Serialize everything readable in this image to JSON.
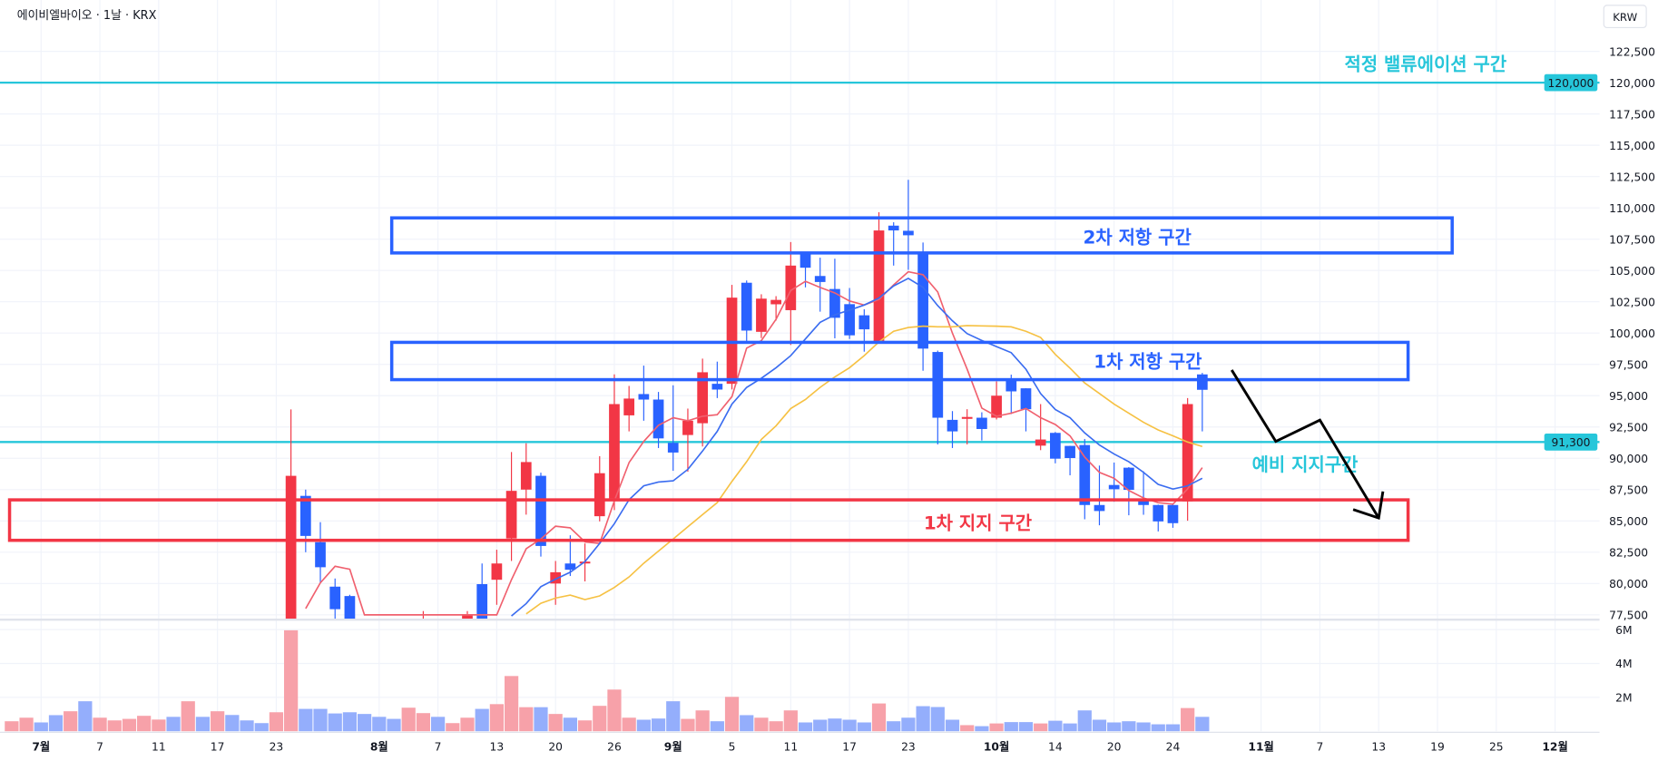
{
  "header": {
    "title": "에이비엘바이오 · 1날 · KRX",
    "currency_button": "KRW"
  },
  "colors": {
    "up": "#f23645",
    "down": "#2962ff",
    "up_volume": "#f7a1a9",
    "down_volume": "#94aefc",
    "ma5": "#f0606e",
    "ma10": "#3a6cf0",
    "ma20": "#f6c143",
    "level_line": "#26c6da",
    "resistance_box": "#2962ff",
    "support_box": "#f23645",
    "arrow": "#000000",
    "grid": "#f0f3fa"
  },
  "chart_data": {
    "type": "candlestick",
    "price_axis": {
      "ylim": [
        77200,
        126600
      ],
      "ticks": [
        "122,500",
        "120,000",
        "117,500",
        "115,000",
        "112,500",
        "110,000",
        "107,500",
        "105,000",
        "102,500",
        "100,000",
        "97,500",
        "95,000",
        "92,500",
        "90,000",
        "87,500",
        "85,000",
        "82,500",
        "80,000",
        "77,500"
      ],
      "highlighted": [
        {
          "value": 120000,
          "label": "120,000"
        },
        {
          "value": 91300,
          "label": "91,300"
        }
      ]
    },
    "volume_axis": {
      "ylim": [
        0,
        6.4
      ],
      "unit": "M",
      "ticks": [
        "6M",
        "4M",
        "2M"
      ]
    },
    "x_axis_labels": [
      {
        "label": "7월",
        "date": "2025-07-01",
        "month": true
      },
      {
        "label": "7",
        "date": "2025-07-07"
      },
      {
        "label": "11",
        "date": "2025-07-11"
      },
      {
        "label": "17",
        "date": "2025-07-17"
      },
      {
        "label": "23",
        "date": "2025-07-23"
      },
      {
        "label": "8월",
        "date": "2025-08-01",
        "month": true
      },
      {
        "label": "7",
        "date": "2025-08-07"
      },
      {
        "label": "13",
        "date": "2025-08-13"
      },
      {
        "label": "20",
        "date": "2025-08-20"
      },
      {
        "label": "26",
        "date": "2025-08-26"
      },
      {
        "label": "9월",
        "date": "2025-09-01",
        "month": true
      },
      {
        "label": "5",
        "date": "2025-09-05"
      },
      {
        "label": "11",
        "date": "2025-09-11"
      },
      {
        "label": "17",
        "date": "2025-09-17"
      },
      {
        "label": "23",
        "date": "2025-09-23"
      },
      {
        "label": "10월",
        "date": "2025-10-01",
        "month": true
      },
      {
        "label": "14",
        "date": "2025-10-14"
      },
      {
        "label": "20",
        "date": "2025-10-20"
      },
      {
        "label": "24",
        "date": "2025-10-24"
      },
      {
        "label": "11월",
        "date": "2025-11-03",
        "month": true
      },
      {
        "label": "7",
        "date": "2025-11-07"
      },
      {
        "label": "13",
        "date": "2025-11-13"
      },
      {
        "label": "19",
        "date": "2025-11-19"
      },
      {
        "label": "25",
        "date": "2025-11-25"
      },
      {
        "label": "12월",
        "date": "2025-12-01",
        "month": true
      }
    ],
    "candles": [
      {
        "d": "2025-06-27",
        "up": true,
        "v": 0.59
      },
      {
        "d": "2025-06-30",
        "up": true,
        "v": 0.8
      },
      {
        "d": "2025-07-01",
        "up": false,
        "v": 0.52
      },
      {
        "d": "2025-07-02",
        "up": false,
        "v": 0.95
      },
      {
        "d": "2025-07-03",
        "up": true,
        "v": 1.18
      },
      {
        "d": "2025-07-04",
        "up": false,
        "v": 1.77
      },
      {
        "d": "2025-07-07",
        "up": true,
        "v": 0.8
      },
      {
        "d": "2025-07-08",
        "up": true,
        "v": 0.64
      },
      {
        "d": "2025-07-09",
        "up": true,
        "v": 0.73
      },
      {
        "d": "2025-07-10",
        "up": true,
        "v": 0.91
      },
      {
        "d": "2025-07-11",
        "up": true,
        "v": 0.69
      },
      {
        "d": "2025-07-14",
        "up": false,
        "v": 0.85
      },
      {
        "d": "2025-07-15",
        "up": true,
        "v": 1.77
      },
      {
        "d": "2025-07-16",
        "up": false,
        "v": 0.85
      },
      {
        "d": "2025-07-17",
        "up": true,
        "v": 1.18
      },
      {
        "d": "2025-07-18",
        "up": false,
        "v": 0.96
      },
      {
        "d": "2025-07-21",
        "up": false,
        "v": 0.64
      },
      {
        "d": "2025-07-22",
        "up": false,
        "v": 0.48
      },
      {
        "d": "2025-07-23",
        "up": true,
        "v": 1.12
      },
      {
        "d": "2025-07-24",
        "o": 73000,
        "h": 93900,
        "l": 72000,
        "c": 88600,
        "v": 5.96
      },
      {
        "d": "2025-07-25",
        "o": 87000,
        "h": 87500,
        "l": 82500,
        "c": 83800,
        "v": 1.32,
        "ma5": 78000
      },
      {
        "d": "2025-07-28",
        "o": 83300,
        "h": 84900,
        "l": 80050,
        "c": 81300,
        "v": 1.32,
        "ma5": 80050
      },
      {
        "d": "2025-07-29",
        "o": 79750,
        "h": 80400,
        "l": 77000,
        "c": 77950,
        "v": 1.05,
        "ma5": 81380
      },
      {
        "d": "2025-07-30",
        "o": 79000,
        "h": 79100,
        "l": 76000,
        "c": 76500,
        "v": 1.12,
        "ma5": 81140
      },
      {
        "d": "2025-07-31",
        "up": false,
        "v": 1.02,
        "ma5": 77500
      },
      {
        "d": "2025-08-01",
        "up": false,
        "v": 0.85
      },
      {
        "d": "2025-08-04",
        "up": false,
        "v": 0.73
      },
      {
        "d": "2025-08-05",
        "up": true,
        "v": 1.39
      },
      {
        "d": "2025-08-06",
        "o": 76000,
        "h": 77800,
        "l": 75500,
        "c": 77000,
        "v": 1.07
      },
      {
        "d": "2025-08-07",
        "up": false,
        "v": 0.85
      },
      {
        "d": "2025-08-08",
        "up": true,
        "v": 0.48
      },
      {
        "d": "2025-08-11",
        "o": 76500,
        "h": 77800,
        "l": 76000,
        "c": 77500,
        "v": 0.8
      },
      {
        "d": "2025-08-12",
        "o": 79950,
        "h": 81600,
        "l": 76000,
        "c": 76500,
        "v": 1.32
      },
      {
        "d": "2025-08-13",
        "o": 80300,
        "h": 82700,
        "l": 78300,
        "c": 81600,
        "v": 1.6,
        "ma5": 77500
      },
      {
        "d": "2025-08-14",
        "o": 83600,
        "h": 90500,
        "l": 81800,
        "c": 87400,
        "v": 3.26,
        "ma5": 80300,
        "ma10": 77400
      },
      {
        "d": "2025-08-18",
        "o": 87500,
        "h": 91200,
        "l": 85500,
        "c": 89700,
        "v": 1.42,
        "ma5": 82780,
        "ma10": 78400,
        "ma20": 77570
      },
      {
        "d": "2025-08-19",
        "o": 88600,
        "h": 88850,
        "l": 82150,
        "c": 83000,
        "v": 1.42,
        "ma5": 83560,
        "ma10": 79750,
        "ma20": 78420
      },
      {
        "d": "2025-08-20",
        "o": 80000,
        "h": 81800,
        "l": 78300,
        "c": 80900,
        "v": 1.02,
        "ma5": 84575,
        "ma10": 80350,
        "ma20": 78840
      },
      {
        "d": "2025-08-21",
        "o": 81600,
        "h": 83850,
        "l": 80600,
        "c": 81100,
        "v": 0.8,
        "ma5": 84450,
        "ma10": 80900,
        "ma20": 79080
      },
      {
        "d": "2025-08-22",
        "o": 81600,
        "h": 83200,
        "l": 80170,
        "c": 81750,
        "v": 0.64,
        "ma5": 83320,
        "ma10": 81750,
        "ma20": 78720
      },
      {
        "d": "2025-08-25",
        "o": 85375,
        "h": 90170,
        "l": 84960,
        "c": 88810,
        "v": 1.5,
        "ma5": 83200,
        "ma10": 83200,
        "ma20": 79010
      },
      {
        "d": "2025-08-26",
        "o": 86800,
        "h": 96700,
        "l": 85860,
        "c": 94330,
        "v": 2.46,
        "ma5": 86590,
        "ma10": 84770,
        "ma20": 79690
      },
      {
        "d": "2025-08-27",
        "o": 93430,
        "h": 95780,
        "l": 92150,
        "c": 94770,
        "v": 0.8,
        "ma5": 89660,
        "ma10": 86700,
        "ma20": 80530
      },
      {
        "d": "2025-08-28",
        "o": 95130,
        "h": 97400,
        "l": 93000,
        "c": 94690,
        "v": 0.68,
        "ma5": 91350,
        "ma10": 87800,
        "ma20": 81620
      },
      {
        "d": "2025-08-29",
        "o": 94690,
        "h": 95300,
        "l": 90820,
        "c": 91590,
        "v": 0.75,
        "ma5": 92630,
        "ma10": 88110,
        "ma20": 82590
      },
      {
        "d": "2025-09-01",
        "o": 91230,
        "h": 95830,
        "l": 89000,
        "c": 90460,
        "v": 1.77,
        "ma5": 93240,
        "ma10": 88200,
        "ma20": 83560
      },
      {
        "d": "2025-09-02",
        "o": 91860,
        "h": 93970,
        "l": 88930,
        "c": 93000,
        "v": 0.73,
        "ma5": 93000,
        "ma10": 89120,
        "ma20": 84530
      },
      {
        "d": "2025-09-03",
        "o": 92800,
        "h": 97960,
        "l": 90940,
        "c": 96870,
        "v": 1.23,
        "ma5": 93360,
        "ma10": 90580,
        "ma20": 85500
      },
      {
        "d": "2025-09-04",
        "o": 95950,
        "h": 97720,
        "l": 94810,
        "c": 95490,
        "v": 0.59,
        "ma5": 93480,
        "ma10": 92150,
        "ma20": 86460
      },
      {
        "d": "2025-09-05",
        "o": 95950,
        "h": 103850,
        "l": 95500,
        "c": 102830,
        "v": 2.03,
        "ma5": 94930,
        "ma10": 94330,
        "ma20": 88160
      },
      {
        "d": "2025-09-08",
        "o": 104020,
        "h": 104200,
        "l": 99260,
        "c": 100200,
        "v": 0.95,
        "ma5": 98800,
        "ma10": 95660,
        "ma20": 89730
      },
      {
        "d": "2025-09-09",
        "o": 100100,
        "h": 103100,
        "l": 99600,
        "c": 102750,
        "v": 0.8,
        "ma5": 99400,
        "ma10": 96390,
        "ma20": 91500
      },
      {
        "d": "2025-09-10",
        "o": 102300,
        "h": 102950,
        "l": 101000,
        "c": 102650,
        "v": 0.59,
        "ma5": 101100,
        "ma10": 97230,
        "ma20": 92600
      },
      {
        "d": "2025-09-11",
        "o": 101830,
        "h": 107270,
        "l": 99050,
        "c": 105390,
        "v": 1.23,
        "ma5": 103400,
        "ma10": 98200,
        "ma20": 93970
      },
      {
        "d": "2025-09-12",
        "o": 106380,
        "h": 106450,
        "l": 103650,
        "c": 105220,
        "v": 0.52,
        "ma5": 104130,
        "ma10": 99530,
        "ma20": 94690
      },
      {
        "d": "2025-09-15",
        "o": 104560,
        "h": 106020,
        "l": 101710,
        "c": 104080,
        "v": 0.68,
        "ma5": 103650,
        "ma10": 100860,
        "ma20": 95660
      },
      {
        "d": "2025-09-16",
        "o": 103520,
        "h": 105940,
        "l": 99580,
        "c": 101220,
        "v": 0.75,
        "ma5": 103210,
        "ma10": 101470,
        "ma20": 96500
      },
      {
        "d": "2025-09-17",
        "o": 102310,
        "h": 103600,
        "l": 99530,
        "c": 99820,
        "v": 0.68,
        "ma5": 102560,
        "ma10": 101830,
        "ma20": 97230
      },
      {
        "d": "2025-09-18",
        "o": 101420,
        "h": 101900,
        "l": 98515,
        "c": 100300,
        "v": 0.52,
        "ma5": 102240,
        "ma10": 102240,
        "ma20": 98200
      },
      {
        "d": "2025-09-19",
        "o": 99290,
        "h": 109650,
        "l": 99200,
        "c": 108195,
        "v": 1.64,
        "ma5": 102680,
        "ma10": 102800,
        "ma20": 99290
      },
      {
        "d": "2025-09-22",
        "o": 108580,
        "h": 108850,
        "l": 105390,
        "c": 108200,
        "v": 0.59,
        "ma5": 103840,
        "ma10": 103770,
        "ma20": 100140
      },
      {
        "d": "2025-09-23",
        "o": 108170,
        "h": 112240,
        "l": 105050,
        "c": 107810,
        "v": 0.8,
        "ma5": 104900,
        "ma10": 104370,
        "ma20": 100450
      },
      {
        "d": "2025-09-24",
        "o": 106430,
        "h": 107230,
        "l": 96990,
        "c": 98760,
        "v": 1.48,
        "ma5": 104660,
        "ma10": 103650,
        "ma20": 100550
      },
      {
        "d": "2025-09-25",
        "o": 98490,
        "h": 98600,
        "l": 91110,
        "c": 93240,
        "v": 1.43,
        "ma5": 103280,
        "ma10": 102190,
        "ma20": 100500
      },
      {
        "d": "2025-09-26",
        "o": 93070,
        "h": 93770,
        "l": 90820,
        "c": 92150,
        "v": 0.68,
        "ma5": 100000,
        "ma10": 100980,
        "ma20": 100500
      },
      {
        "d": "2025-09-29",
        "o": 93150,
        "h": 93920,
        "l": 91110,
        "c": 93300,
        "v": 0.36,
        "ma5": 97110,
        "ma10": 99960,
        "ma20": 100600
      },
      {
        "d": "2025-09-30",
        "o": 93240,
        "h": 93675,
        "l": 91420,
        "c": 92340,
        "v": 0.3,
        "ma5": 94010,
        "ma10": 99410,
        "ma20": 100580
      },
      {
        "d": "2025-10-01",
        "o": 93240,
        "h": 96140,
        "l": 93100,
        "c": 95000,
        "v": 0.46,
        "ma5": 93360,
        "ma10": 98920,
        "ma20": 100550
      },
      {
        "d": "2025-10-02",
        "o": 96310,
        "h": 96680,
        "l": 93530,
        "c": 95345,
        "v": 0.54,
        "ma5": 93600,
        "ma10": 98440,
        "ma20": 100500
      },
      {
        "d": "2025-10-10",
        "o": 95590,
        "h": 95600,
        "l": 92150,
        "c": 93920,
        "v": 0.54,
        "ma5": 93970,
        "ma10": 97110,
        "ma20": 100140
      },
      {
        "d": "2025-10-13",
        "o": 91010,
        "h": 94330,
        "l": 90650,
        "c": 91500,
        "v": 0.46,
        "ma5": 93240,
        "ma10": 95170,
        "ma20": 99650
      },
      {
        "d": "2025-10-14",
        "o": 92030,
        "h": 92100,
        "l": 89600,
        "c": 89970,
        "v": 0.62,
        "ma5": 92700,
        "ma10": 93900,
        "ma20": 98300
      },
      {
        "d": "2025-10-15",
        "o": 90990,
        "h": 91000,
        "l": 88640,
        "c": 90020,
        "v": 0.46,
        "ma5": 91790,
        "ma10": 93240,
        "ma20": 97200
      },
      {
        "d": "2025-10-16",
        "o": 91060,
        "h": 91545,
        "l": 85130,
        "c": 86270,
        "v": 1.23,
        "ma5": 90090,
        "ma10": 92030,
        "ma20": 96020
      },
      {
        "d": "2025-10-17",
        "o": 86270,
        "h": 89420,
        "l": 84650,
        "c": 85790,
        "v": 0.68,
        "ma5": 88880,
        "ma10": 91060,
        "ma20": 95180
      },
      {
        "d": "2025-10-20",
        "o": 87870,
        "h": 89660,
        "l": 86530,
        "c": 87530,
        "v": 0.52,
        "ma5": 88400,
        "ma10": 90340,
        "ma20": 94330
      },
      {
        "d": "2025-10-21",
        "o": 89250,
        "h": 89300,
        "l": 85450,
        "c": 87480,
        "v": 0.59,
        "ma5": 87430,
        "ma10": 89730,
        "ma20": 93600
      },
      {
        "d": "2025-10-22",
        "o": 86750,
        "h": 88960,
        "l": 85490,
        "c": 86270,
        "v": 0.52,
        "ma5": 86830,
        "ma10": 88880,
        "ma20": 92880
      },
      {
        "d": "2025-10-23",
        "o": 86270,
        "h": 86300,
        "l": 84160,
        "c": 84960,
        "v": 0.41,
        "ma5": 86460,
        "ma10": 87920,
        "ma20": 92270
      },
      {
        "d": "2025-10-24",
        "o": 86270,
        "h": 86300,
        "l": 84450,
        "c": 84820,
        "v": 0.41,
        "ma5": 86340,
        "ma10": 87550,
        "ma20": 91790
      },
      {
        "d": "2025-10-27",
        "o": 86560,
        "h": 94810,
        "l": 85010,
        "c": 94330,
        "v": 1.37,
        "ma5": 87550,
        "ma10": 87800,
        "ma20": 91300
      },
      {
        "d": "2025-10-28",
        "o": 96700,
        "h": 96820,
        "l": 92150,
        "c": 95470,
        "v": 0.85,
        "ma5": 89250,
        "ma10": 88400,
        "ma20": 90940
      }
    ],
    "annotations": {
      "levels": [
        {
          "price": 120000,
          "label": "적정 밸류에이션 구간"
        },
        {
          "price": 91300,
          "label": "예비 지지구간"
        }
      ],
      "zones": [
        {
          "label": "2차 저항 구간",
          "kind": "resistance",
          "top": 109200,
          "bottom": 106400,
          "from": "2025-08-04",
          "to": "2025-11-20"
        },
        {
          "label": "1차 저항 구간",
          "kind": "resistance",
          "top": 99260,
          "bottom": 96280,
          "from": "2025-08-04",
          "to": "2025-11-17"
        },
        {
          "label": "1차 지지 구간",
          "kind": "support",
          "top": 86680,
          "bottom": 83450,
          "from": "2025-06-27",
          "to": "2025-11-17"
        }
      ],
      "projection_path": [
        {
          "d": "2025-10-30",
          "p": 97050
        },
        {
          "d": "2025-11-04",
          "p": 91350
        },
        {
          "d": "2025-11-07",
          "p": 93050
        },
        {
          "d": "2025-11-13",
          "p": 85230
        }
      ]
    }
  }
}
